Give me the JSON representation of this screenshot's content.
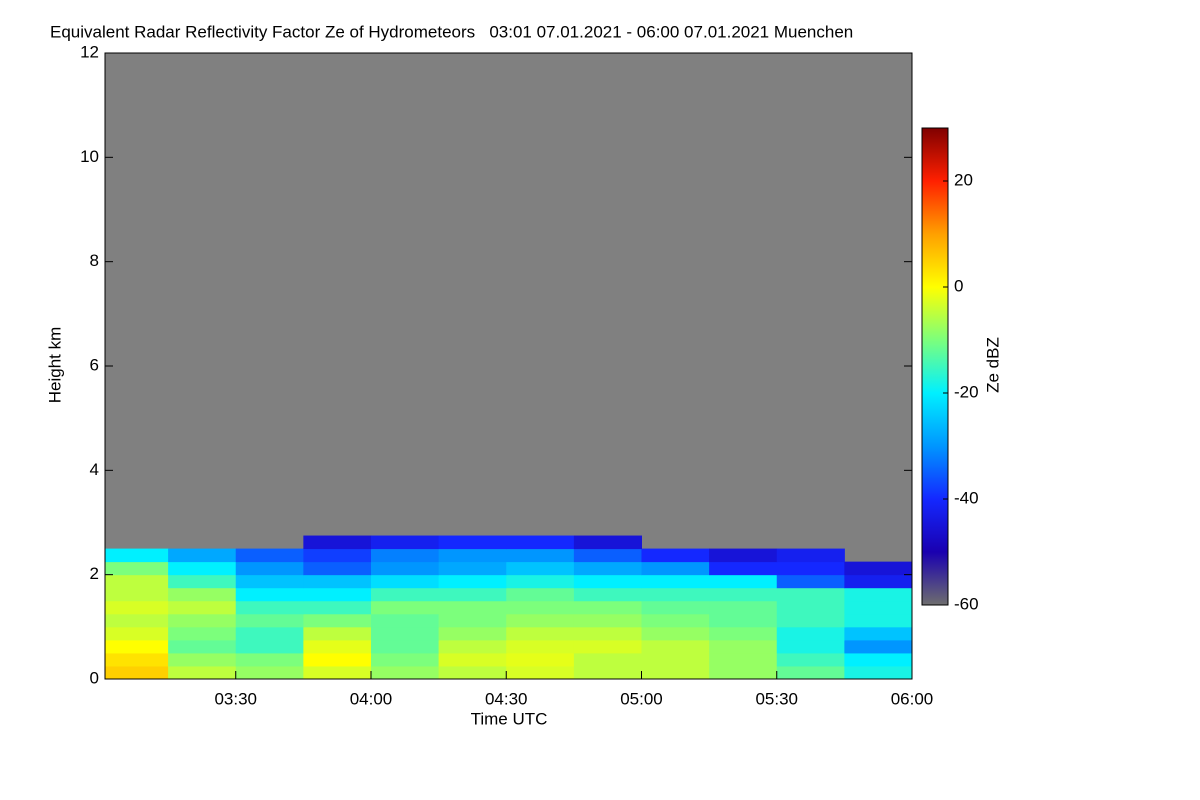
{
  "chart_data": {
    "type": "heatmap",
    "title": "Equivalent Radar Reflectivity Factor Ze of Hydrometeors   03:01 07.01.2021 - 06:00 07.01.2021 Muenchen",
    "x_label": "Time UTC",
    "y_label": "Height km",
    "colorbar_label": "Ze dBZ",
    "background_color": "#808080",
    "xlim": [
      3.0167,
      6.0
    ],
    "xticks": [
      {
        "value": 3.5,
        "label": "03:30"
      },
      {
        "value": 4.0,
        "label": "04:00"
      },
      {
        "value": 4.5,
        "label": "04:30"
      },
      {
        "value": 5.0,
        "label": "05:00"
      },
      {
        "value": 5.5,
        "label": "05:30"
      },
      {
        "value": 6.0,
        "label": "06:00"
      }
    ],
    "ylim": [
      0,
      12
    ],
    "yticks": [
      0,
      2,
      4,
      6,
      8,
      10,
      12
    ],
    "clim": [
      -60,
      30
    ],
    "cticks": [
      -60,
      -40,
      -20,
      0,
      20
    ],
    "colorscale": [
      "#6e6e6e",
      "#1a00b0",
      "#1428ff",
      "#0096ff",
      "#00f0ff",
      "#7cff7c",
      "#ffff00",
      "#ffa000",
      "#ff2000",
      "#800000"
    ],
    "x_edges": [
      3.0167,
      3.25,
      3.5,
      3.75,
      4.0,
      4.25,
      4.5,
      4.75,
      5.0,
      5.25,
      5.5,
      5.75,
      6.0
    ],
    "y_edges": [
      0,
      0.25,
      0.5,
      0.75,
      1.0,
      1.25,
      1.5,
      1.75,
      2.0,
      2.25,
      2.5,
      2.75
    ],
    "z": [
      [
        5,
        -5,
        -8,
        -3,
        -8,
        -5,
        -3,
        -5,
        -5,
        -8,
        -12,
        -18
      ],
      [
        3,
        -8,
        -10,
        0,
        -10,
        -3,
        -2,
        -5,
        -5,
        -8,
        -15,
        -20
      ],
      [
        0,
        -12,
        -15,
        -2,
        -12,
        -5,
        -3,
        -3,
        -5,
        -8,
        -18,
        -30
      ],
      [
        -3,
        -10,
        -15,
        -5,
        -12,
        -8,
        -5,
        -5,
        -8,
        -10,
        -18,
        -25
      ],
      [
        -5,
        -8,
        -12,
        -10,
        -12,
        -10,
        -8,
        -8,
        -10,
        -12,
        -15,
        -18
      ],
      [
        -3,
        -5,
        -15,
        -15,
        -10,
        -10,
        -10,
        -10,
        -12,
        -12,
        -15,
        -18
      ],
      [
        -5,
        -8,
        -20,
        -20,
        -15,
        -15,
        -12,
        -15,
        -15,
        -15,
        -15,
        -18
      ],
      [
        -5,
        -15,
        -25,
        -25,
        -22,
        -20,
        -18,
        -20,
        -20,
        -20,
        -35,
        -42
      ],
      [
        -10,
        -20,
        -30,
        -35,
        -30,
        -28,
        -25,
        -28,
        -30,
        -40,
        -40,
        -45
      ],
      [
        -20,
        -28,
        -35,
        -38,
        -32,
        -30,
        -30,
        -35,
        -40,
        -45,
        -42,
        null
      ],
      [
        null,
        null,
        null,
        -45,
        -42,
        -40,
        -40,
        -45,
        null,
        null,
        null,
        null
      ]
    ]
  }
}
